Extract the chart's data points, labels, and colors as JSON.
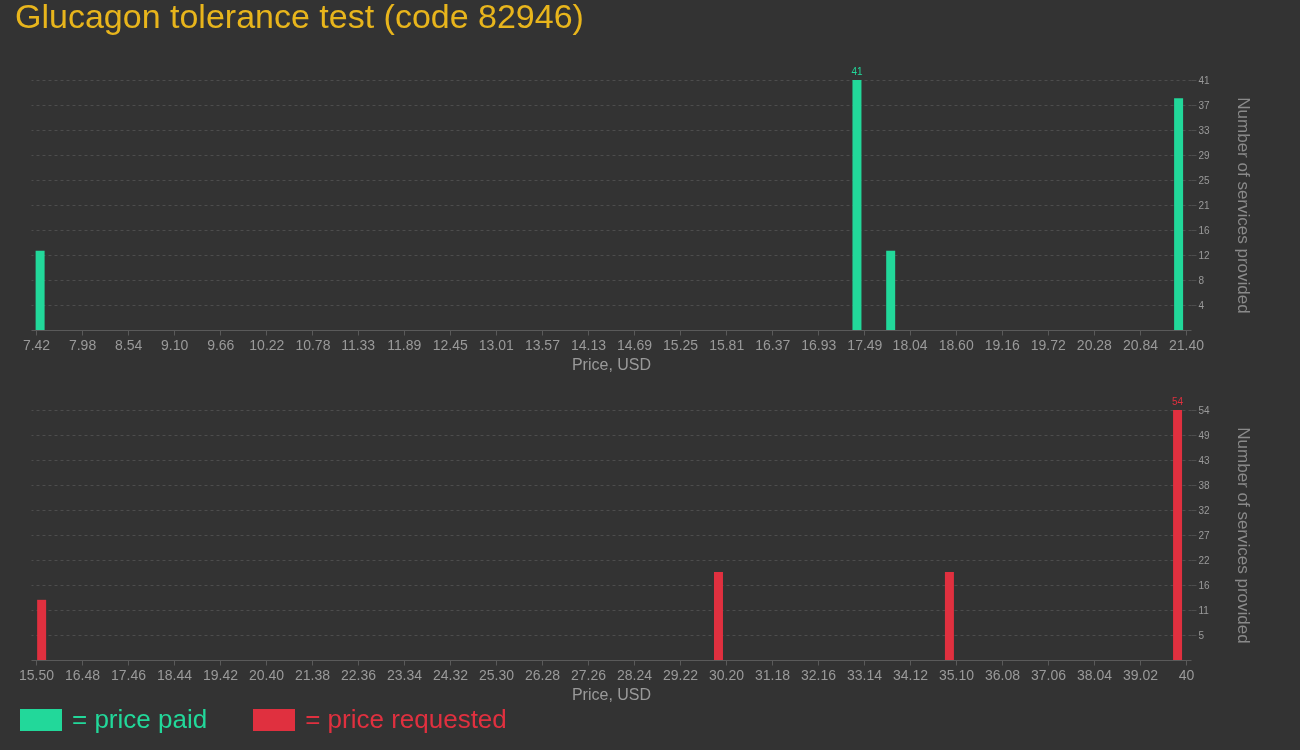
{
  "chart_data": [
    {
      "type": "bar",
      "title": "Glucagon tolerance test (code 82946)",
      "xlabel": "Price, USD",
      "ylabel": "Number of services provided",
      "x": [
        7.47,
        17.4,
        17.81,
        21.31
      ],
      "series": [
        {
          "name": "= price paid",
          "color": "#22d89a",
          "values": [
            13,
            41,
            13,
            38
          ],
          "value_labels": [
            null,
            "41",
            null,
            null
          ]
        }
      ],
      "xlim": [
        7.42,
        21.4
      ],
      "ylim": [
        0,
        41
      ],
      "xticks": [
        {
          "value": 7.42,
          "label": "7.42"
        },
        {
          "value": 7.98,
          "label": "7.98"
        },
        {
          "value": 8.54,
          "label": "8.54"
        },
        {
          "value": 9.1,
          "label": "9.10"
        },
        {
          "value": 9.66,
          "label": "9.66"
        },
        {
          "value": 10.22,
          "label": "10.22"
        },
        {
          "value": 10.78,
          "label": "10.78"
        },
        {
          "value": 11.33,
          "label": "11.33"
        },
        {
          "value": 11.89,
          "label": "11.89"
        },
        {
          "value": 12.45,
          "label": "12.45"
        },
        {
          "value": 13.01,
          "label": "13.01"
        },
        {
          "value": 13.57,
          "label": "13.57"
        },
        {
          "value": 14.13,
          "label": "14.13"
        },
        {
          "value": 14.69,
          "label": "14.69"
        },
        {
          "value": 15.25,
          "label": "15.25"
        },
        {
          "value": 15.81,
          "label": "15.81"
        },
        {
          "value": 16.37,
          "label": "16.37"
        },
        {
          "value": 16.93,
          "label": "16.93"
        },
        {
          "value": 17.49,
          "label": "17.49"
        },
        {
          "value": 18.04,
          "label": "18.04"
        },
        {
          "value": 18.6,
          "label": "18.60"
        },
        {
          "value": 19.16,
          "label": "19.16"
        },
        {
          "value": 19.72,
          "label": "19.72"
        },
        {
          "value": 20.28,
          "label": "20.28"
        },
        {
          "value": 20.84,
          "label": "20.84"
        },
        {
          "value": 21.4,
          "label": "21.40"
        }
      ],
      "yticks": [
        {
          "value": 4.1,
          "label": "4"
        },
        {
          "value": 8.2,
          "label": "8"
        },
        {
          "value": 12.3,
          "label": "12"
        },
        {
          "value": 16.4,
          "label": "16"
        },
        {
          "value": 20.5,
          "label": "21"
        },
        {
          "value": 24.6,
          "label": "25"
        },
        {
          "value": 28.7,
          "label": "29"
        },
        {
          "value": 32.8,
          "label": "33"
        },
        {
          "value": 36.9,
          "label": "37"
        },
        41
      ],
      "grid": "y",
      "legend": "bottom"
    },
    {
      "type": "bar",
      "xlabel": "Price, USD",
      "ylabel": "Number of services provided",
      "x": [
        15.62,
        30.04,
        34.96,
        39.82
      ],
      "series": [
        {
          "name": "= price requested",
          "color": "#e0303f",
          "values": [
            13,
            19,
            19,
            54
          ],
          "value_labels": [
            null,
            null,
            null,
            "54"
          ]
        }
      ],
      "xlim": [
        15.5,
        40
      ],
      "ylim": [
        0,
        54
      ],
      "xticks": [
        {
          "value": 15.5,
          "label": "15.50"
        },
        {
          "value": 16.48,
          "label": "16.48"
        },
        {
          "value": 17.46,
          "label": "17.46"
        },
        {
          "value": 18.44,
          "label": "18.44"
        },
        {
          "value": 19.42,
          "label": "19.42"
        },
        {
          "value": 20.4,
          "label": "20.40"
        },
        {
          "value": 21.38,
          "label": "21.38"
        },
        {
          "value": 22.36,
          "label": "22.36"
        },
        {
          "value": 23.34,
          "label": "23.34"
        },
        {
          "value": 24.32,
          "label": "24.32"
        },
        {
          "value": 25.3,
          "label": "25.30"
        },
        {
          "value": 26.28,
          "label": "26.28"
        },
        {
          "value": 27.26,
          "label": "27.26"
        },
        {
          "value": 28.24,
          "label": "28.24"
        },
        {
          "value": 29.22,
          "label": "29.22"
        },
        {
          "value": 30.2,
          "label": "30.20"
        },
        {
          "value": 31.18,
          "label": "31.18"
        },
        {
          "value": 32.16,
          "label": "32.16"
        },
        {
          "value": 33.14,
          "label": "33.14"
        },
        {
          "value": 34.12,
          "label": "34.12"
        },
        {
          "value": 35.1,
          "label": "35.10"
        },
        {
          "value": 36.08,
          "label": "36.08"
        },
        {
          "value": 37.06,
          "label": "37.06"
        },
        {
          "value": 38.04,
          "label": "38.04"
        },
        {
          "value": 39.02,
          "label": "39.02"
        },
        40
      ],
      "yticks": [
        {
          "value": 5.4,
          "label": "5"
        },
        {
          "value": 10.8,
          "label": "11"
        },
        {
          "value": 16.2,
          "label": "16"
        },
        {
          "value": 21.6,
          "label": "22"
        },
        27,
        {
          "value": 32.4,
          "label": "32"
        },
        {
          "value": 37.8,
          "label": "38"
        },
        {
          "value": 43.2,
          "label": "43"
        },
        {
          "value": 48.6,
          "label": "49"
        },
        54
      ],
      "grid": "y",
      "legend": "bottom"
    }
  ]
}
